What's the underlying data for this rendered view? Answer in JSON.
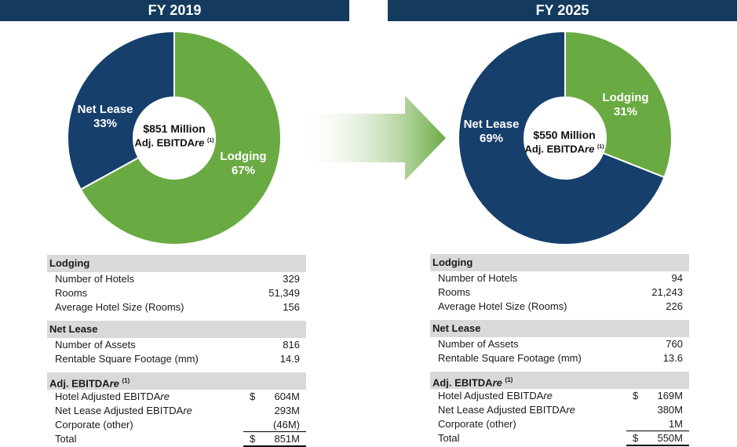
{
  "left": {
    "header": "FY 2019",
    "center_amount": "$851 Million",
    "center_label": "Adj. EBITDA",
    "center_label_italic": "re",
    "footnote": "(1)",
    "lodging_label": "Lodging",
    "lodging_pct": "67%",
    "netlease_label": "Net Lease",
    "netlease_pct": "33%",
    "table": {
      "lodging": {
        "title": "Lodging",
        "rows": [
          {
            "label": "Number of Hotels",
            "value": "329"
          },
          {
            "label": "Rooms",
            "value": "51,349"
          },
          {
            "label": "Average Hotel Size (Rooms)",
            "value": "156"
          }
        ]
      },
      "netlease": {
        "title": "Net Lease",
        "rows": [
          {
            "label": "Number of Assets",
            "value": "816"
          },
          {
            "label": "Rentable Square Footage (mm)",
            "value": "14.9"
          }
        ]
      },
      "ebitda": {
        "title": "Adj. EBITDA",
        "title_italic": "re",
        "footnote": "(1)",
        "hotel_label": "Hotel Adjusted EBITDA",
        "hotel_italic": "re",
        "hotel_dollar": "$",
        "hotel_value": "604M",
        "netlease_label": "Net Lease Adjusted EBITDA",
        "netlease_italic": "re",
        "netlease_value": "293M",
        "corporate_label": "Corporate (other)",
        "corporate_value": "(46M)",
        "total_label": "Total",
        "total_dollar": "$",
        "total_value": "851M"
      }
    }
  },
  "right": {
    "header": "FY 2025",
    "center_amount": "$550 Million",
    "center_label": "Adj. EBITDA",
    "center_label_italic": "re",
    "footnote": "(1)",
    "lodging_label": "Lodging",
    "lodging_pct": "31%",
    "netlease_label": "Net Lease",
    "netlease_pct": "69%",
    "table": {
      "lodging": {
        "title": "Lodging",
        "rows": [
          {
            "label": "Number of Hotels",
            "value": "94"
          },
          {
            "label": "Rooms",
            "value": "21,243"
          },
          {
            "label": "Average Hotel Size (Rooms)",
            "value": "226"
          }
        ]
      },
      "netlease": {
        "title": "Net Lease",
        "rows": [
          {
            "label": "Number of Assets",
            "value": "760"
          },
          {
            "label": "Rentable Square Footage (mm)",
            "value": "13.6"
          }
        ]
      },
      "ebitda": {
        "title": "Adj. EBITDA",
        "title_italic": "re",
        "footnote": "(1)",
        "hotel_label": "Hotel Adjusted EBITDA",
        "hotel_italic": "re",
        "hotel_dollar": "$",
        "hotel_value": "169M",
        "netlease_label": "Net Lease Adjusted EBITDA",
        "netlease_italic": "re",
        "netlease_value": "380M",
        "corporate_label": "Corporate (other)",
        "corporate_value": "1M",
        "total_label": "Total",
        "total_dollar": "$",
        "total_value": "550M"
      }
    }
  },
  "colors": {
    "header": "#143a5e",
    "lodging": "#6aaa42",
    "netlease": "#163f6b",
    "arrow": "#6aaa42",
    "section": "#d9d9d9"
  },
  "chart_data": [
    {
      "type": "pie",
      "title": "FY 2019",
      "categories": [
        "Lodging",
        "Net Lease"
      ],
      "values": [
        67,
        33
      ],
      "total": "$851 Million Adj. EBITDAre"
    },
    {
      "type": "pie",
      "title": "FY 2025",
      "categories": [
        "Lodging",
        "Net Lease"
      ],
      "values": [
        31,
        69
      ],
      "total": "$550 Million Adj. EBITDAre"
    }
  ]
}
